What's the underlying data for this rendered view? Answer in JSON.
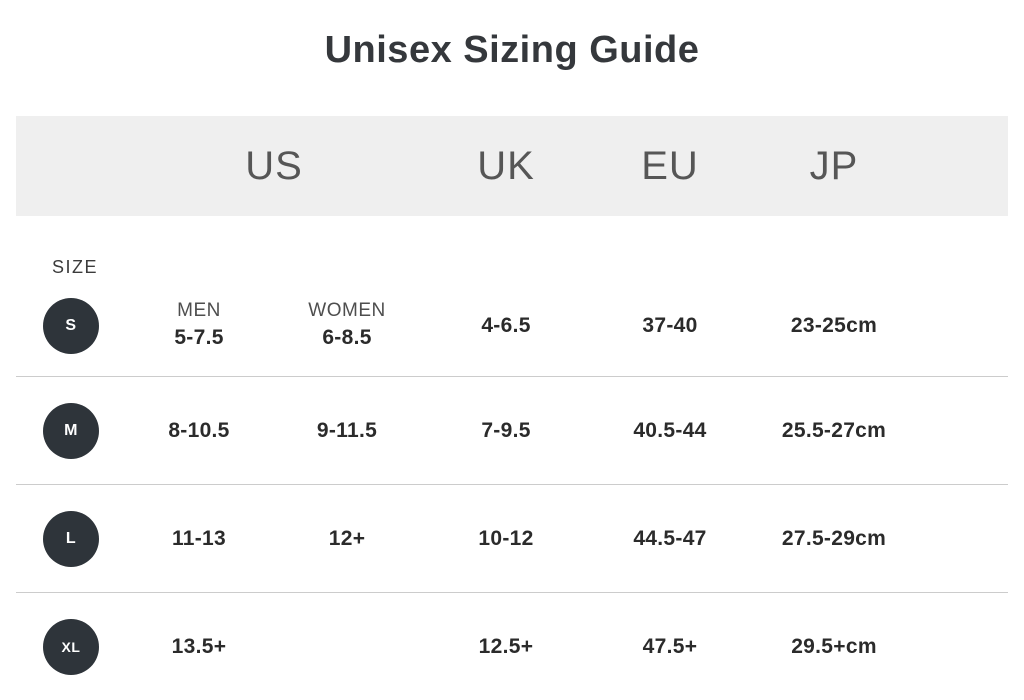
{
  "title": "Unisex Sizing Guide",
  "table": {
    "size_label": "SIZE",
    "region_headers": {
      "us": "US",
      "uk": "UK",
      "eu": "EU",
      "jp": "JP"
    },
    "us_subcolumns": {
      "men": "MEN",
      "women": "WOMEN"
    },
    "rows": [
      {
        "size": "S",
        "us_men": "5-7.5",
        "us_women": "6-8.5",
        "uk": "4-6.5",
        "eu": "37-40",
        "jp": "23-25cm"
      },
      {
        "size": "M",
        "us_men": "8-10.5",
        "us_women": "9-11.5",
        "uk": "7-9.5",
        "eu": "40.5-44",
        "jp": "25.5-27cm"
      },
      {
        "size": "L",
        "us_men": "11-13",
        "us_women": "12+",
        "uk": "10-12",
        "eu": "44.5-47",
        "jp": "27.5-29cm"
      },
      {
        "size": "XL",
        "us_men": "13.5+",
        "us_women": "",
        "uk": "12.5+",
        "eu": "47.5+",
        "jp": "29.5+cm"
      }
    ]
  },
  "colors": {
    "band_background": "#efefef",
    "badge_background": "#2e343a",
    "divider": "#cccccc",
    "title_text": "#35383c",
    "header_text": "#565656",
    "value_text": "#2b2b2b"
  }
}
